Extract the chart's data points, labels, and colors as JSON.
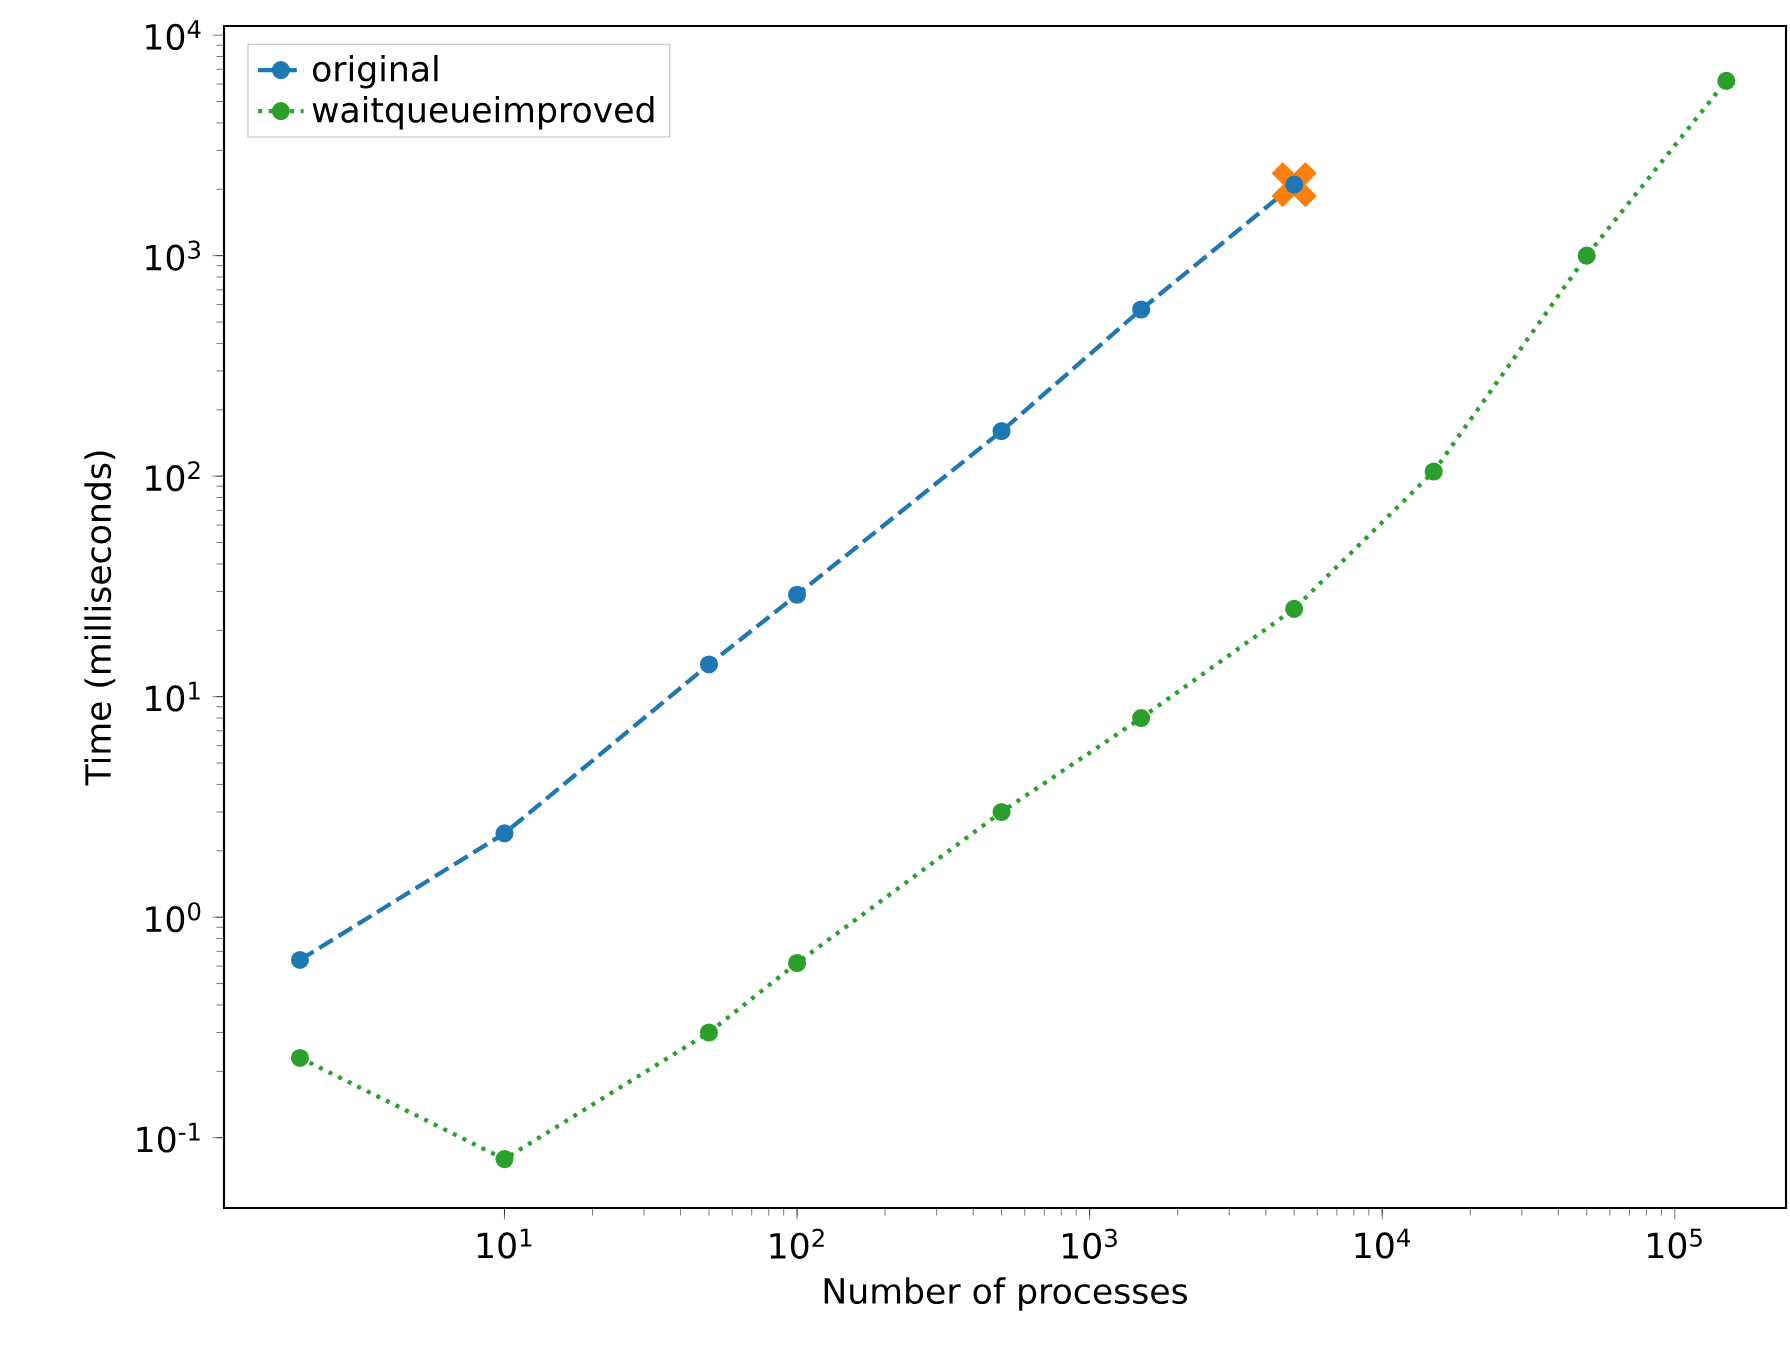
{
  "chart_data": {
    "type": "line",
    "xlabel": "Number of processes",
    "ylabel": "Time (milliseconds)",
    "log": "xy",
    "legend": "top left",
    "xlim": [
      1.1,
      240000
    ],
    "ylim": [
      0.048,
      11000
    ],
    "xticks": [
      {
        "value": 10,
        "label": "10$^{1}$"
      },
      {
        "value": 100,
        "label": "10$^{2}$"
      },
      {
        "value": 1000,
        "label": "10$^{3}$"
      },
      {
        "value": 10000,
        "label": "10$^{4}$"
      },
      {
        "value": 100000,
        "label": "10$^{5}$"
      }
    ],
    "yticks": [
      {
        "value": 0.1,
        "label": "10$^{-1}$"
      },
      {
        "value": 1,
        "label": "10$^{0}$"
      },
      {
        "value": 10,
        "label": "10$^{1}$"
      },
      {
        "value": 100,
        "label": "10$^{2}$"
      },
      {
        "value": 1000,
        "label": "10$^{3}$"
      },
      {
        "value": 10000,
        "label": "10$^{4}$"
      }
    ],
    "series": [
      {
        "color": "#ff7f0e",
        "type": "scatter",
        "marker": "cross",
        "x": [
          5000
        ],
        "values": [
          2100
        ]
      },
      {
        "name": "original",
        "color": "#1f77b4",
        "type": "line",
        "line_style": "dashed",
        "marker": "circle",
        "x": [
          2,
          10,
          50,
          100,
          500,
          1500,
          5000
        ],
        "values": [
          0.64,
          2.4,
          14,
          29,
          160,
          570,
          2100
        ]
      },
      {
        "name": "waitqueueimproved",
        "color": "#2ca02c",
        "type": "line",
        "line_style": "dotted",
        "marker": "circle",
        "x": [
          2,
          10,
          50,
          100,
          500,
          1500,
          5000,
          15000,
          50000,
          150000
        ],
        "values": [
          0.23,
          0.08,
          0.3,
          0.62,
          3.0,
          8.0,
          25,
          105,
          1000,
          6200
        ]
      }
    ]
  }
}
